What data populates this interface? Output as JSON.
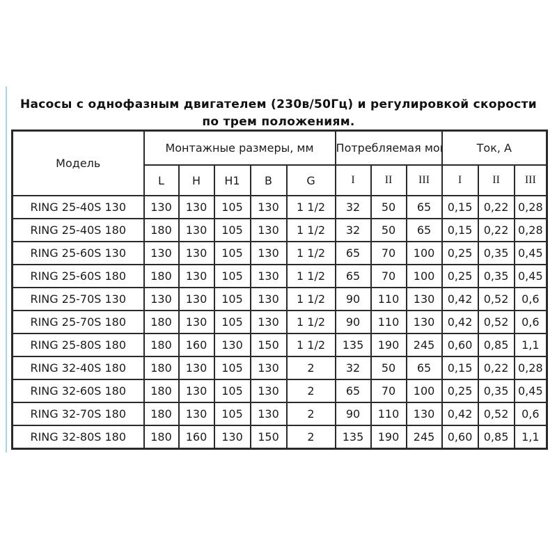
{
  "page": {
    "title_line1": "Насосы с однофазным двигателем (230в/50Гц) и регулировкой скорости",
    "title_line2": "по трем положениям."
  },
  "table": {
    "header": {
      "model": "Модель",
      "mounting_group": "Монтажные размеры, мм",
      "power_group": "Потребляемая мощность, Вт",
      "current_group": "Ток, А",
      "mounting_cols": [
        "L",
        "H",
        "H1",
        "B",
        "G"
      ],
      "power_cols": [
        "I",
        "II",
        "III"
      ],
      "current_cols": [
        "I",
        "II",
        "III"
      ]
    },
    "rows": [
      [
        "RING 25-40S 130",
        "130",
        "130",
        "105",
        "130",
        "1 1/2",
        "32",
        "50",
        "65",
        "0,15",
        "0,22",
        "0,28"
      ],
      [
        "RING 25-40S 180",
        "180",
        "130",
        "105",
        "130",
        "1 1/2",
        "32",
        "50",
        "65",
        "0,15",
        "0,22",
        "0,28"
      ],
      [
        "RING 25-60S 130",
        "130",
        "130",
        "105",
        "130",
        "1 1/2",
        "65",
        "70",
        "100",
        "0,25",
        "0,35",
        "0,45"
      ],
      [
        "RING 25-60S 180",
        "180",
        "130",
        "105",
        "130",
        "1 1/2",
        "65",
        "70",
        "100",
        "0,25",
        "0,35",
        "0,45"
      ],
      [
        "RING 25-70S 130",
        "130",
        "130",
        "105",
        "130",
        "1 1/2",
        "90",
        "110",
        "130",
        "0,42",
        "0,52",
        "0,6"
      ],
      [
        "RING 25-70S 180",
        "180",
        "130",
        "105",
        "130",
        "1 1/2",
        "90",
        "110",
        "130",
        "0,42",
        "0,52",
        "0,6"
      ],
      [
        "RING 25-80S 180",
        "180",
        "160",
        "130",
        "150",
        "1 1/2",
        "135",
        "190",
        "245",
        "0,60",
        "0,85",
        "1,1"
      ],
      [
        "RING 32-40S 180",
        "180",
        "130",
        "105",
        "130",
        "2",
        "32",
        "50",
        "65",
        "0,15",
        "0,22",
        "0,28"
      ],
      [
        "RING 32-60S 180",
        "180",
        "130",
        "105",
        "130",
        "2",
        "65",
        "70",
        "100",
        "0,25",
        "0,35",
        "0,45"
      ],
      [
        "RING 32-70S 180",
        "180",
        "130",
        "105",
        "130",
        "2",
        "90",
        "110",
        "130",
        "0,42",
        "0,52",
        "0,6"
      ],
      [
        "RING 32-80S 180",
        "180",
        "160",
        "130",
        "150",
        "2",
        "135",
        "190",
        "245",
        "0,60",
        "0,85",
        "1,1"
      ]
    ]
  }
}
